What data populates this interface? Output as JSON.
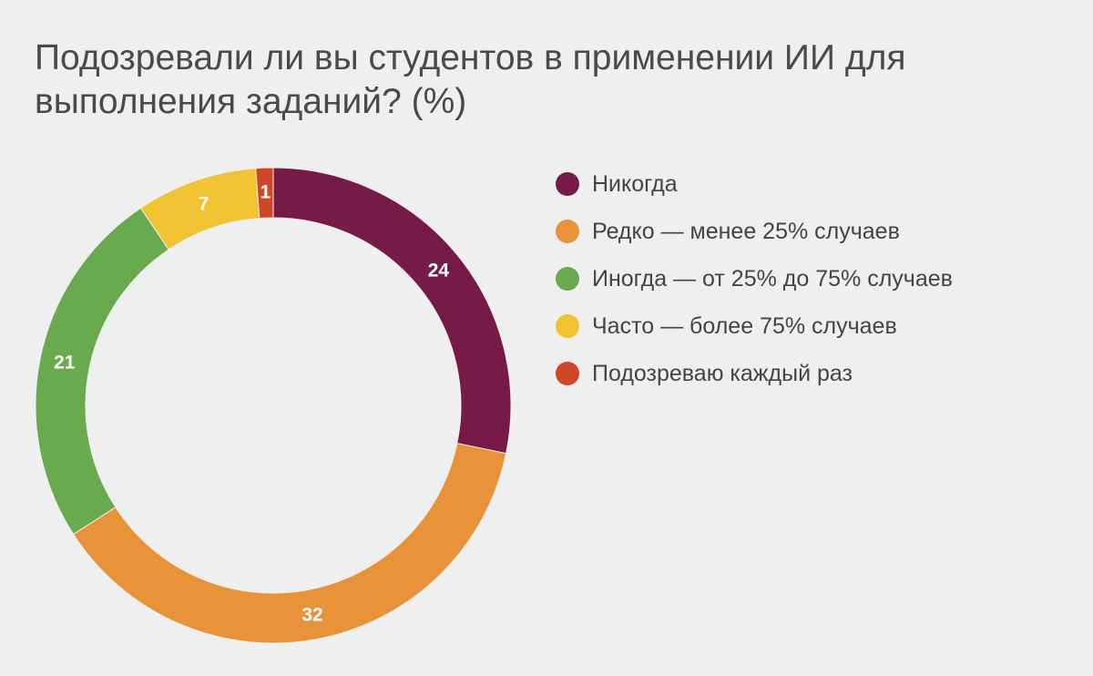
{
  "title": "Подозревали ли вы студентов в применении ИИ для выполнения заданий? (%)",
  "chart_data": {
    "type": "pie",
    "donut": true,
    "title": "Подозревали ли вы студентов в применении ИИ для выполнения заданий? (%)",
    "start_angle_deg": 0,
    "direction": "clockwise",
    "legend_position": "right",
    "categories": [
      "Никогда",
      "Редко — менее 25% случаев",
      "Иногда — от 25% до 75% случаев",
      "Часто — более 75% случаев",
      "Подозреваю каждый раз"
    ],
    "values": [
      24,
      32,
      21,
      7,
      1
    ],
    "data_labels": [
      "24",
      "32",
      "21",
      "7",
      "1"
    ],
    "colors": [
      "#781a47",
      "#e8933a",
      "#6aaa4f",
      "#f1c232",
      "#d14626"
    ]
  }
}
